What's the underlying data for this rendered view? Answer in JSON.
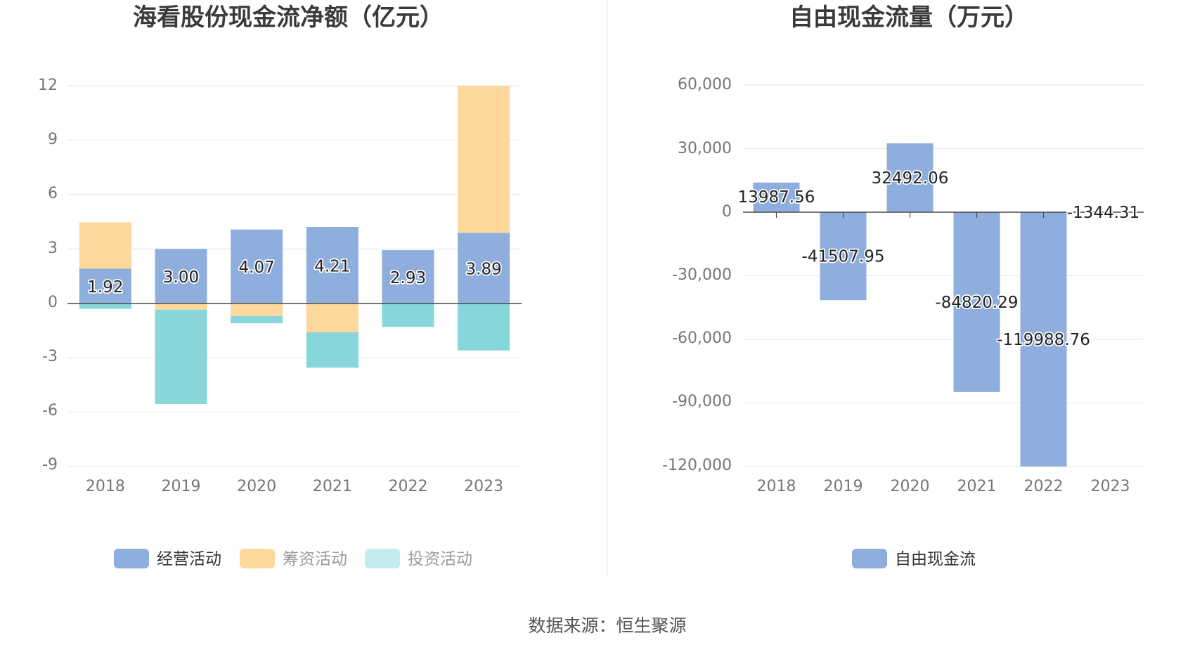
{
  "left_chart": {
    "title": "海看股份现金流净额（亿元）",
    "y_ticks": [
      "12",
      "9",
      "6",
      "3",
      "0",
      "-3",
      "-6",
      "-9"
    ]
  },
  "right_chart": {
    "title": "自由现金流量（万元）",
    "y_ticks": [
      "60,000",
      "30,000",
      "0",
      "-30,000",
      "-60,000",
      "-90,000",
      "-120,000"
    ]
  },
  "footer": {
    "source": "数据来源：恒生聚源"
  },
  "colors": {
    "operating": "#8eaedd",
    "financing": "#fdd89c",
    "investing": "#87d6d9",
    "investing_legend": "#c3ecee",
    "divider": "#eeeeee"
  },
  "chart_data": [
    {
      "type": "bar",
      "stacked": true,
      "title": "海看股份现金流净额（亿元）",
      "categories": [
        "2018",
        "2019",
        "2020",
        "2021",
        "2022",
        "2023"
      ],
      "ylim": [
        -9,
        12
      ],
      "series": [
        {
          "name": "经营活动",
          "values": [
            1.92,
            3.0,
            4.07,
            4.21,
            2.93,
            3.89
          ],
          "labels": [
            "1.92",
            "3.00",
            "4.07",
            "4.21",
            "2.93",
            "3.89"
          ]
        },
        {
          "name": "筹资活动",
          "values": [
            2.55,
            -0.35,
            -0.7,
            -1.6,
            0,
            8.1
          ]
        },
        {
          "name": "投资活动",
          "values": [
            -0.3,
            -5.2,
            -0.4,
            -1.95,
            -1.3,
            -2.6
          ]
        }
      ],
      "legend_position": "bottom"
    },
    {
      "type": "bar",
      "title": "自由现金流量（万元）",
      "categories": [
        "2018",
        "2019",
        "2020",
        "2021",
        "2022",
        "2023"
      ],
      "ylim": [
        -120000,
        60000
      ],
      "series": [
        {
          "name": "自由现金流",
          "values": [
            13987.56,
            -41507.95,
            32492.06,
            -84820.29,
            -119988.76,
            -1344.31
          ],
          "labels": [
            "13987.56",
            "-41507.95",
            "32492.06",
            "-84820.29",
            "-119988.76",
            "-1344.31"
          ]
        }
      ],
      "legend_position": "bottom"
    }
  ]
}
